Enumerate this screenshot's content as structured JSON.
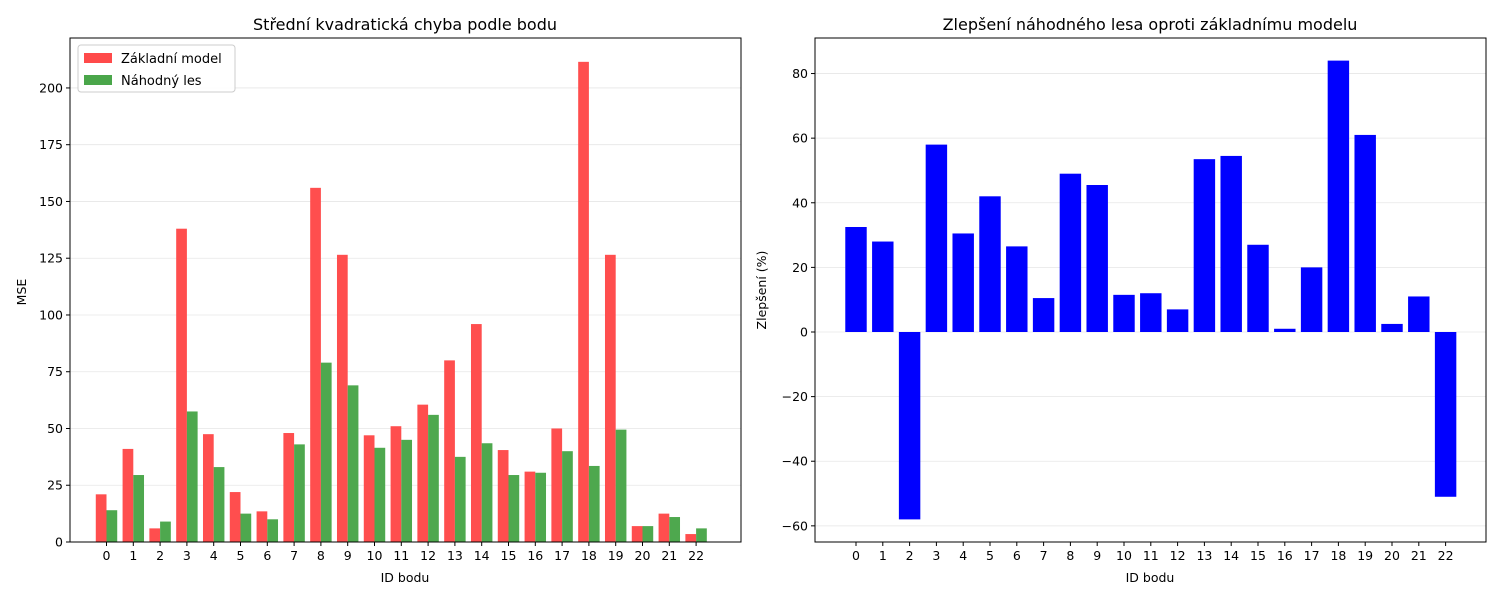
{
  "chart_data": [
    {
      "type": "bar",
      "title": "Střední kvadratická chyba podle bodu",
      "xlabel": "ID bodu",
      "ylabel": "MSE",
      "categories": [
        "0",
        "1",
        "2",
        "3",
        "4",
        "5",
        "6",
        "7",
        "8",
        "9",
        "10",
        "11",
        "12",
        "13",
        "14",
        "15",
        "16",
        "17",
        "18",
        "19",
        "20",
        "21",
        "22"
      ],
      "ylim": [
        0,
        222
      ],
      "yticks": [
        0,
        25,
        50,
        75,
        100,
        125,
        150,
        175,
        200
      ],
      "grid": "y",
      "legend_position": "top-left",
      "series": [
        {
          "name": "Základní model",
          "color": "#ff4a4a",
          "values": [
            21,
            41,
            6,
            138,
            47.5,
            22,
            13.5,
            48,
            156,
            126.5,
            47,
            51,
            60.5,
            80,
            96,
            40.5,
            31,
            50,
            211.5,
            126.5,
            7,
            12.5,
            3.5
          ]
        },
        {
          "name": "Náhodný les",
          "color": "#4aa64a",
          "values": [
            14,
            29.5,
            9,
            57.5,
            33,
            12.5,
            10,
            43,
            79,
            69,
            41.5,
            45,
            56,
            37.5,
            43.5,
            29.5,
            30.5,
            40,
            33.5,
            49.5,
            7,
            11,
            6
          ]
        }
      ]
    },
    {
      "type": "bar",
      "title": "Zlepšení náhodného lesa oproti základnímu modelu",
      "xlabel": "ID bodu",
      "ylabel": "Zlepšení (%)",
      "categories": [
        "0",
        "1",
        "2",
        "3",
        "4",
        "5",
        "6",
        "7",
        "8",
        "9",
        "10",
        "11",
        "12",
        "13",
        "14",
        "15",
        "16",
        "17",
        "18",
        "19",
        "20",
        "21",
        "22"
      ],
      "ylim": [
        -65,
        91
      ],
      "yticks": [
        -60,
        -40,
        -20,
        0,
        20,
        40,
        60,
        80
      ],
      "grid": "y",
      "series": [
        {
          "color": "#0000ff",
          "values": [
            32.5,
            28,
            -58,
            58,
            30.5,
            42,
            26.5,
            10.5,
            49,
            45.5,
            11.5,
            12,
            7,
            53.5,
            54.5,
            27,
            1,
            20,
            84,
            61,
            2.5,
            11,
            -51
          ]
        }
      ]
    }
  ]
}
